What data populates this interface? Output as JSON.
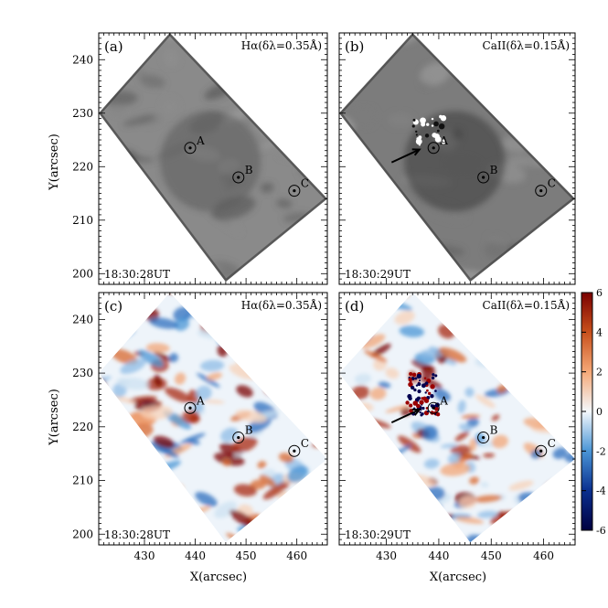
{
  "figure": {
    "x_axis_label": "X(arcsec)",
    "y_axis_label": "Y(arcsec)",
    "x_ticks": [
      "430",
      "440",
      "450",
      "460"
    ],
    "y_ticks": [
      "200",
      "210",
      "220",
      "230",
      "240"
    ],
    "x_tick_values": [
      430,
      440,
      450,
      460
    ],
    "y_tick_values": [
      200,
      210,
      220,
      230,
      240
    ],
    "x_range": [
      421,
      466
    ],
    "y_range": [
      198,
      245
    ],
    "colorbar_ticks": [
      "6",
      "4",
      "2",
      "0",
      "-2",
      "-4",
      "-6"
    ],
    "colorbar_tick_values": [
      6,
      4,
      2,
      0,
      -2,
      -4,
      -6
    ],
    "colorbar_colors": [
      "#7a0000",
      "#c8501c",
      "#f5a978",
      "#f4f8fc",
      "#4a95d6",
      "#0a2f8f",
      "#000040"
    ]
  },
  "panels": [
    {
      "tag": "(a)",
      "line": "Hα(δλ=0.35Å)",
      "time": "18:30:28UT",
      "style": "gray"
    },
    {
      "tag": "(b)",
      "line": "CaII(δλ=0.15Å)",
      "time": "18:30:29UT",
      "style": "gray-dark"
    },
    {
      "tag": "(c)",
      "line": "Hα(δλ=0.35Å)",
      "time": "18:30:28UT",
      "style": "color"
    },
    {
      "tag": "(d)",
      "line": "CaII(δλ=0.15Å)",
      "time": "18:30:29UT",
      "style": "color"
    }
  ],
  "points": [
    {
      "label": "A",
      "x": 439,
      "y": 223.5
    },
    {
      "label": "B",
      "x": 448.5,
      "y": 218
    },
    {
      "label": "C",
      "x": 459.5,
      "y": 215.5
    }
  ],
  "fov_corners": [
    [
      421,
      230
    ],
    [
      435,
      245
    ],
    [
      466,
      214
    ],
    [
      446,
      198.5
    ]
  ]
}
